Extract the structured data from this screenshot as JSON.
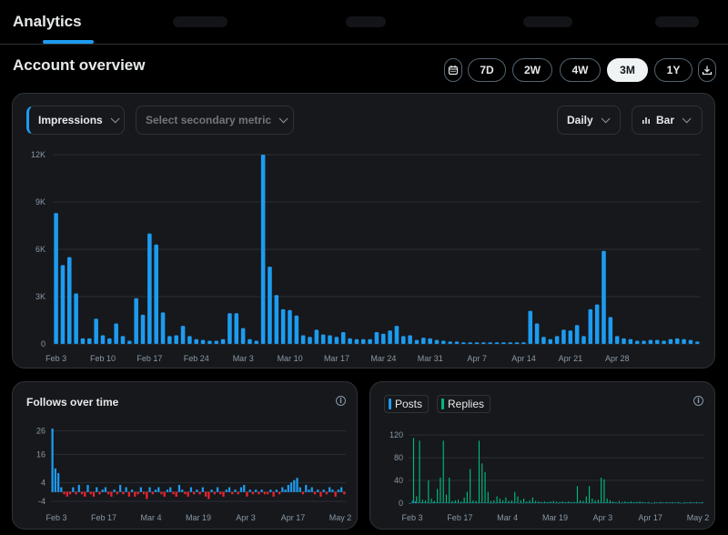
{
  "nav": {
    "active_tab": "Analytics"
  },
  "overview": {
    "title": "Account overview",
    "ranges": [
      "7D",
      "2W",
      "4W",
      "3M",
      "1Y"
    ],
    "active_range": "3M",
    "icons": {
      "calendar": "calendar-icon",
      "download": "download-icon"
    }
  },
  "main_chart": {
    "primary_metric": "Impressions",
    "secondary_placeholder": "Select secondary metric",
    "granularity": "Daily",
    "chart_type_label": "Bar",
    "accent_color": "#1d9bf0"
  },
  "follows": {
    "title": "Follows over time",
    "positive_color": "#1d9bf0",
    "negative_color": "#f4212e"
  },
  "posts": {
    "legend": [
      "Posts",
      "Replies"
    ],
    "posts_color": "#1d9bf0",
    "replies_color": "#00ba7c"
  },
  "chart_data": [
    {
      "type": "bar",
      "title": "",
      "series": [
        {
          "name": "Impressions",
          "values": [
            8300,
            5000,
            5500,
            3200,
            350,
            350,
            1600,
            550,
            350,
            1300,
            500,
            200,
            2900,
            1850,
            7000,
            6300,
            2000,
            500,
            550,
            1150,
            500,
            300,
            250,
            200,
            200,
            300,
            1950,
            1950,
            1000,
            300,
            200,
            12000,
            4900,
            3100,
            2200,
            2150,
            1800,
            550,
            450,
            900,
            600,
            550,
            450,
            750,
            350,
            300,
            300,
            300,
            750,
            650,
            850,
            1150,
            500,
            550,
            250,
            400,
            350,
            250,
            200,
            150,
            150,
            100,
            100,
            100,
            100,
            100,
            100,
            100,
            100,
            100,
            100,
            2100,
            1300,
            450,
            300,
            500,
            900,
            850,
            1200,
            500,
            2200,
            2500,
            5900,
            1700,
            500,
            350,
            300,
            200,
            200,
            250,
            250,
            200,
            300,
            350,
            300,
            250,
            150
          ]
        }
      ],
      "x_tick_labels": [
        "Feb 3",
        "Feb 10",
        "Feb 17",
        "Feb 24",
        "Mar 3",
        "Mar 10",
        "Mar 17",
        "Mar 24",
        "Mar 31",
        "Apr 7",
        "Apr 14",
        "Apr 21",
        "Apr 28"
      ],
      "y_ticks": [
        "0",
        "3K",
        "6K",
        "9K",
        "12K"
      ],
      "ylim": [
        0,
        12000
      ],
      "grid": true
    },
    {
      "type": "bar",
      "title": "Follows over time",
      "series": [
        {
          "name": "Follows",
          "values": [
            27,
            10,
            8,
            2,
            -1,
            -2,
            -1,
            2,
            -1,
            3,
            -1,
            -2,
            3,
            -1,
            -2,
            2,
            -1,
            1,
            2,
            -1,
            -2,
            1,
            -1,
            3,
            -1,
            2,
            -2,
            1,
            -2,
            -1,
            2,
            -1,
            -3,
            2,
            -1,
            1,
            2,
            -1,
            -2,
            1,
            2,
            -1,
            -2,
            3,
            1,
            -1,
            -2,
            2,
            -1,
            1,
            -1,
            2,
            -2,
            -3,
            1,
            -1,
            2,
            -1,
            -2,
            1,
            2,
            -1,
            1,
            -1,
            2,
            3,
            -2,
            1,
            -1,
            1,
            -1,
            1,
            -1,
            -1,
            1,
            -2,
            1,
            -1,
            2,
            1,
            3,
            4,
            5,
            6,
            2,
            -1,
            3,
            1,
            2,
            -1,
            1,
            -2,
            1,
            -1,
            2,
            1,
            -2,
            1,
            2,
            -1
          ]
        }
      ],
      "x_tick_labels": [
        "Feb 3",
        "Feb 17",
        "Mar 4",
        "Mar 19",
        "Apr 3",
        "Apr 17",
        "May 2"
      ],
      "y_ticks": [
        "-4",
        "4",
        "16",
        "26"
      ],
      "ylim": [
        -4,
        27
      ],
      "grid": true
    },
    {
      "type": "bar",
      "title": "",
      "series": [
        {
          "name": "Posts",
          "values": [
            0,
            4,
            3,
            1,
            1,
            1,
            1,
            0,
            2,
            1,
            1,
            1,
            1,
            1,
            1,
            1,
            1,
            0,
            1,
            1,
            1,
            1,
            1,
            1,
            1,
            1,
            1,
            0,
            0,
            1,
            1,
            1,
            1,
            1,
            1,
            1,
            1,
            0,
            0,
            1,
            1,
            1,
            1,
            1,
            1,
            1,
            1,
            1,
            1,
            0,
            0,
            1,
            1,
            1,
            1,
            1,
            1,
            1,
            1,
            1,
            0,
            0,
            1,
            1,
            1,
            1,
            1,
            1,
            1,
            1,
            0,
            0,
            1,
            1,
            1,
            1,
            1,
            1,
            1,
            1,
            1,
            0,
            0,
            1,
            1,
            1,
            1,
            1,
            1,
            1,
            1,
            0,
            0,
            1,
            1,
            1,
            1,
            1,
            1
          ]
        },
        {
          "name": "Replies",
          "values": [
            0,
            115,
            12,
            110,
            6,
            5,
            40,
            8,
            4,
            25,
            45,
            110,
            15,
            45,
            4,
            5,
            6,
            3,
            10,
            20,
            60,
            5,
            4,
            110,
            70,
            55,
            20,
            4,
            5,
            12,
            8,
            5,
            10,
            4,
            5,
            20,
            12,
            5,
            8,
            3,
            5,
            10,
            4,
            3,
            2,
            3,
            2,
            3,
            4,
            3,
            2,
            3,
            2,
            3,
            2,
            2,
            30,
            5,
            4,
            12,
            30,
            8,
            5,
            6,
            45,
            42,
            8,
            5,
            3,
            2,
            4,
            2,
            3,
            2,
            3,
            2,
            2,
            3,
            2,
            1,
            2,
            1,
            2,
            1,
            2,
            1,
            2,
            1,
            2,
            1,
            2,
            1,
            2,
            1,
            2,
            1,
            2,
            1,
            2
          ]
        }
      ],
      "x_tick_labels": [
        "Feb 3",
        "Feb 17",
        "Mar 4",
        "Mar 19",
        "Apr 3",
        "Apr 17",
        "May 2"
      ],
      "y_ticks": [
        "0",
        "40",
        "80",
        "120"
      ],
      "ylim": [
        0,
        125
      ],
      "grid": true
    }
  ]
}
